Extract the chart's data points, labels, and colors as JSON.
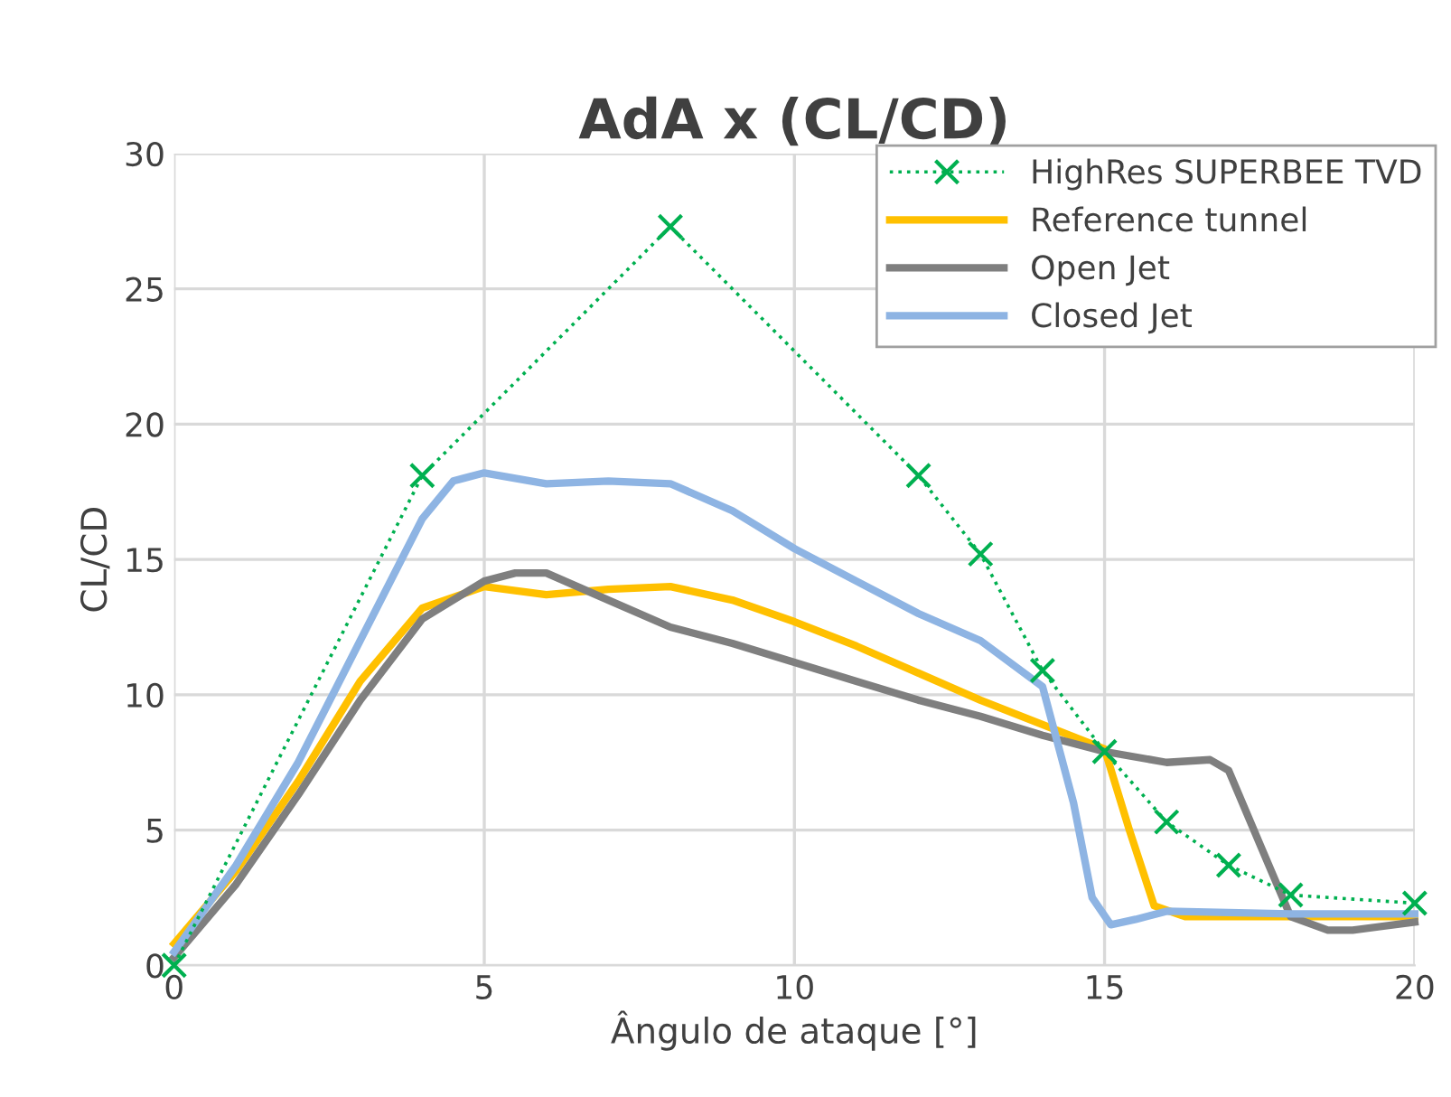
{
  "chart_data": {
    "type": "line",
    "title": "AdA x (CL/CD)",
    "xlabel": "Ângulo de ataque [°]",
    "ylabel": "CL/CD",
    "xlim": [
      0,
      20
    ],
    "ylim": [
      0,
      30
    ],
    "xticks": [
      0,
      5,
      10,
      15,
      20
    ],
    "yticks": [
      0,
      5,
      10,
      15,
      20,
      25,
      30
    ],
    "grid": true,
    "legend": "top right",
    "series": [
      {
        "name": "HighRes SUPERBEE TVD",
        "color": "#00b050",
        "marker": "cross",
        "line_style": "dotted",
        "x": [
          0,
          4,
          8,
          12,
          13,
          14,
          15,
          16,
          17,
          18,
          20
        ],
        "values": [
          0,
          18.1,
          27.3,
          18.1,
          15.2,
          10.9,
          7.9,
          5.3,
          3.7,
          2.6,
          2.3
        ]
      },
      {
        "name": "Reference tunnel",
        "color": "#ffc000",
        "marker": "none",
        "line_style": "solid",
        "x": [
          0,
          1,
          2,
          3,
          4,
          5,
          6,
          7,
          8,
          9,
          10,
          11,
          12,
          13,
          14,
          15,
          15.4,
          15.8,
          16.3,
          17,
          18,
          19,
          20
        ],
        "values": [
          0.8,
          3.5,
          6.8,
          10.5,
          13.2,
          14.0,
          13.7,
          13.9,
          14.0,
          13.5,
          12.7,
          11.8,
          10.8,
          9.8,
          8.9,
          8.0,
          5,
          2.2,
          1.8,
          1.8,
          1.8,
          1.8,
          1.8
        ]
      },
      {
        "name": "Open Jet",
        "color": "#7f7f7f",
        "marker": "none",
        "line_style": "solid",
        "x": [
          0,
          1,
          2,
          3,
          4,
          5,
          5.5,
          6,
          7,
          8,
          9,
          10,
          11,
          12,
          13,
          14,
          15,
          16,
          16.7,
          17,
          17.5,
          18,
          18.6,
          19,
          20
        ],
        "values": [
          0.3,
          3,
          6.3,
          9.8,
          12.8,
          14.2,
          14.5,
          14.5,
          13.5,
          12.5,
          11.9,
          11.2,
          10.5,
          9.8,
          9.2,
          8.5,
          7.9,
          7.5,
          7.6,
          7.2,
          4.5,
          1.8,
          1.3,
          1.3,
          1.6
        ]
      },
      {
        "name": "Closed Jet",
        "color": "#8eb4e3",
        "marker": "none",
        "line_style": "solid",
        "x": [
          0,
          1,
          2,
          3,
          4,
          4.5,
          5,
          6,
          7,
          8,
          9,
          10,
          11,
          12,
          13,
          14,
          14.5,
          14.8,
          15.1,
          15.5,
          16,
          17,
          18,
          19,
          20
        ],
        "values": [
          0.5,
          3.7,
          7.5,
          12,
          16.5,
          17.9,
          18.2,
          17.8,
          17.9,
          17.8,
          16.8,
          15.4,
          14.2,
          13,
          12,
          10.3,
          6,
          2.5,
          1.5,
          1.7,
          2.0,
          1.95,
          1.9,
          1.9,
          1.9
        ]
      }
    ]
  }
}
